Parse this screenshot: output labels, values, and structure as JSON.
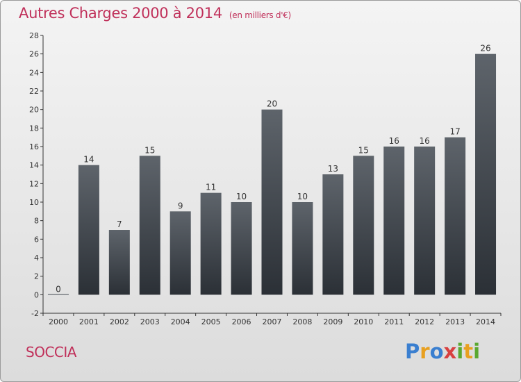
{
  "header": {
    "title": "Autres Charges 2000 à 2014",
    "unit": "(en milliers d'€)"
  },
  "footer": {
    "commune": "SOCCIA",
    "logo": {
      "letters": [
        "P",
        "r",
        "o",
        "x",
        "i",
        "t",
        "i"
      ],
      "colors": [
        "#3a7fd0",
        "#e8a020",
        "#3a7fd0",
        "#d84040",
        "#5aa830",
        "#e8a020",
        "#5aa830"
      ]
    }
  },
  "chart_data": {
    "type": "bar",
    "title": "Autres Charges 2000 à 2014",
    "ylabel": "(en milliers d'€)",
    "categories": [
      "2000",
      "2001",
      "2002",
      "2003",
      "2004",
      "2005",
      "2006",
      "2007",
      "2008",
      "2009",
      "2010",
      "2011",
      "2012",
      "2013",
      "2014"
    ],
    "values": [
      0,
      14,
      7,
      15,
      9,
      11,
      10,
      20,
      10,
      13,
      15,
      16,
      16,
      17,
      26
    ],
    "data_labels": [
      "0",
      "14",
      "7",
      "15",
      "9",
      "11",
      "10",
      "20",
      "10",
      "13",
      "15",
      "16",
      "16",
      "17",
      "26"
    ],
    "ylim": [
      -2,
      28
    ],
    "yticks": [
      -2,
      0,
      2,
      4,
      6,
      8,
      10,
      12,
      14,
      16,
      18,
      20,
      22,
      24,
      26,
      28
    ],
    "grid": false,
    "colors": {
      "bar_top": "#5e646b",
      "bar_bottom": "#2b3036",
      "axis": "#333333",
      "label": "#333333"
    }
  }
}
